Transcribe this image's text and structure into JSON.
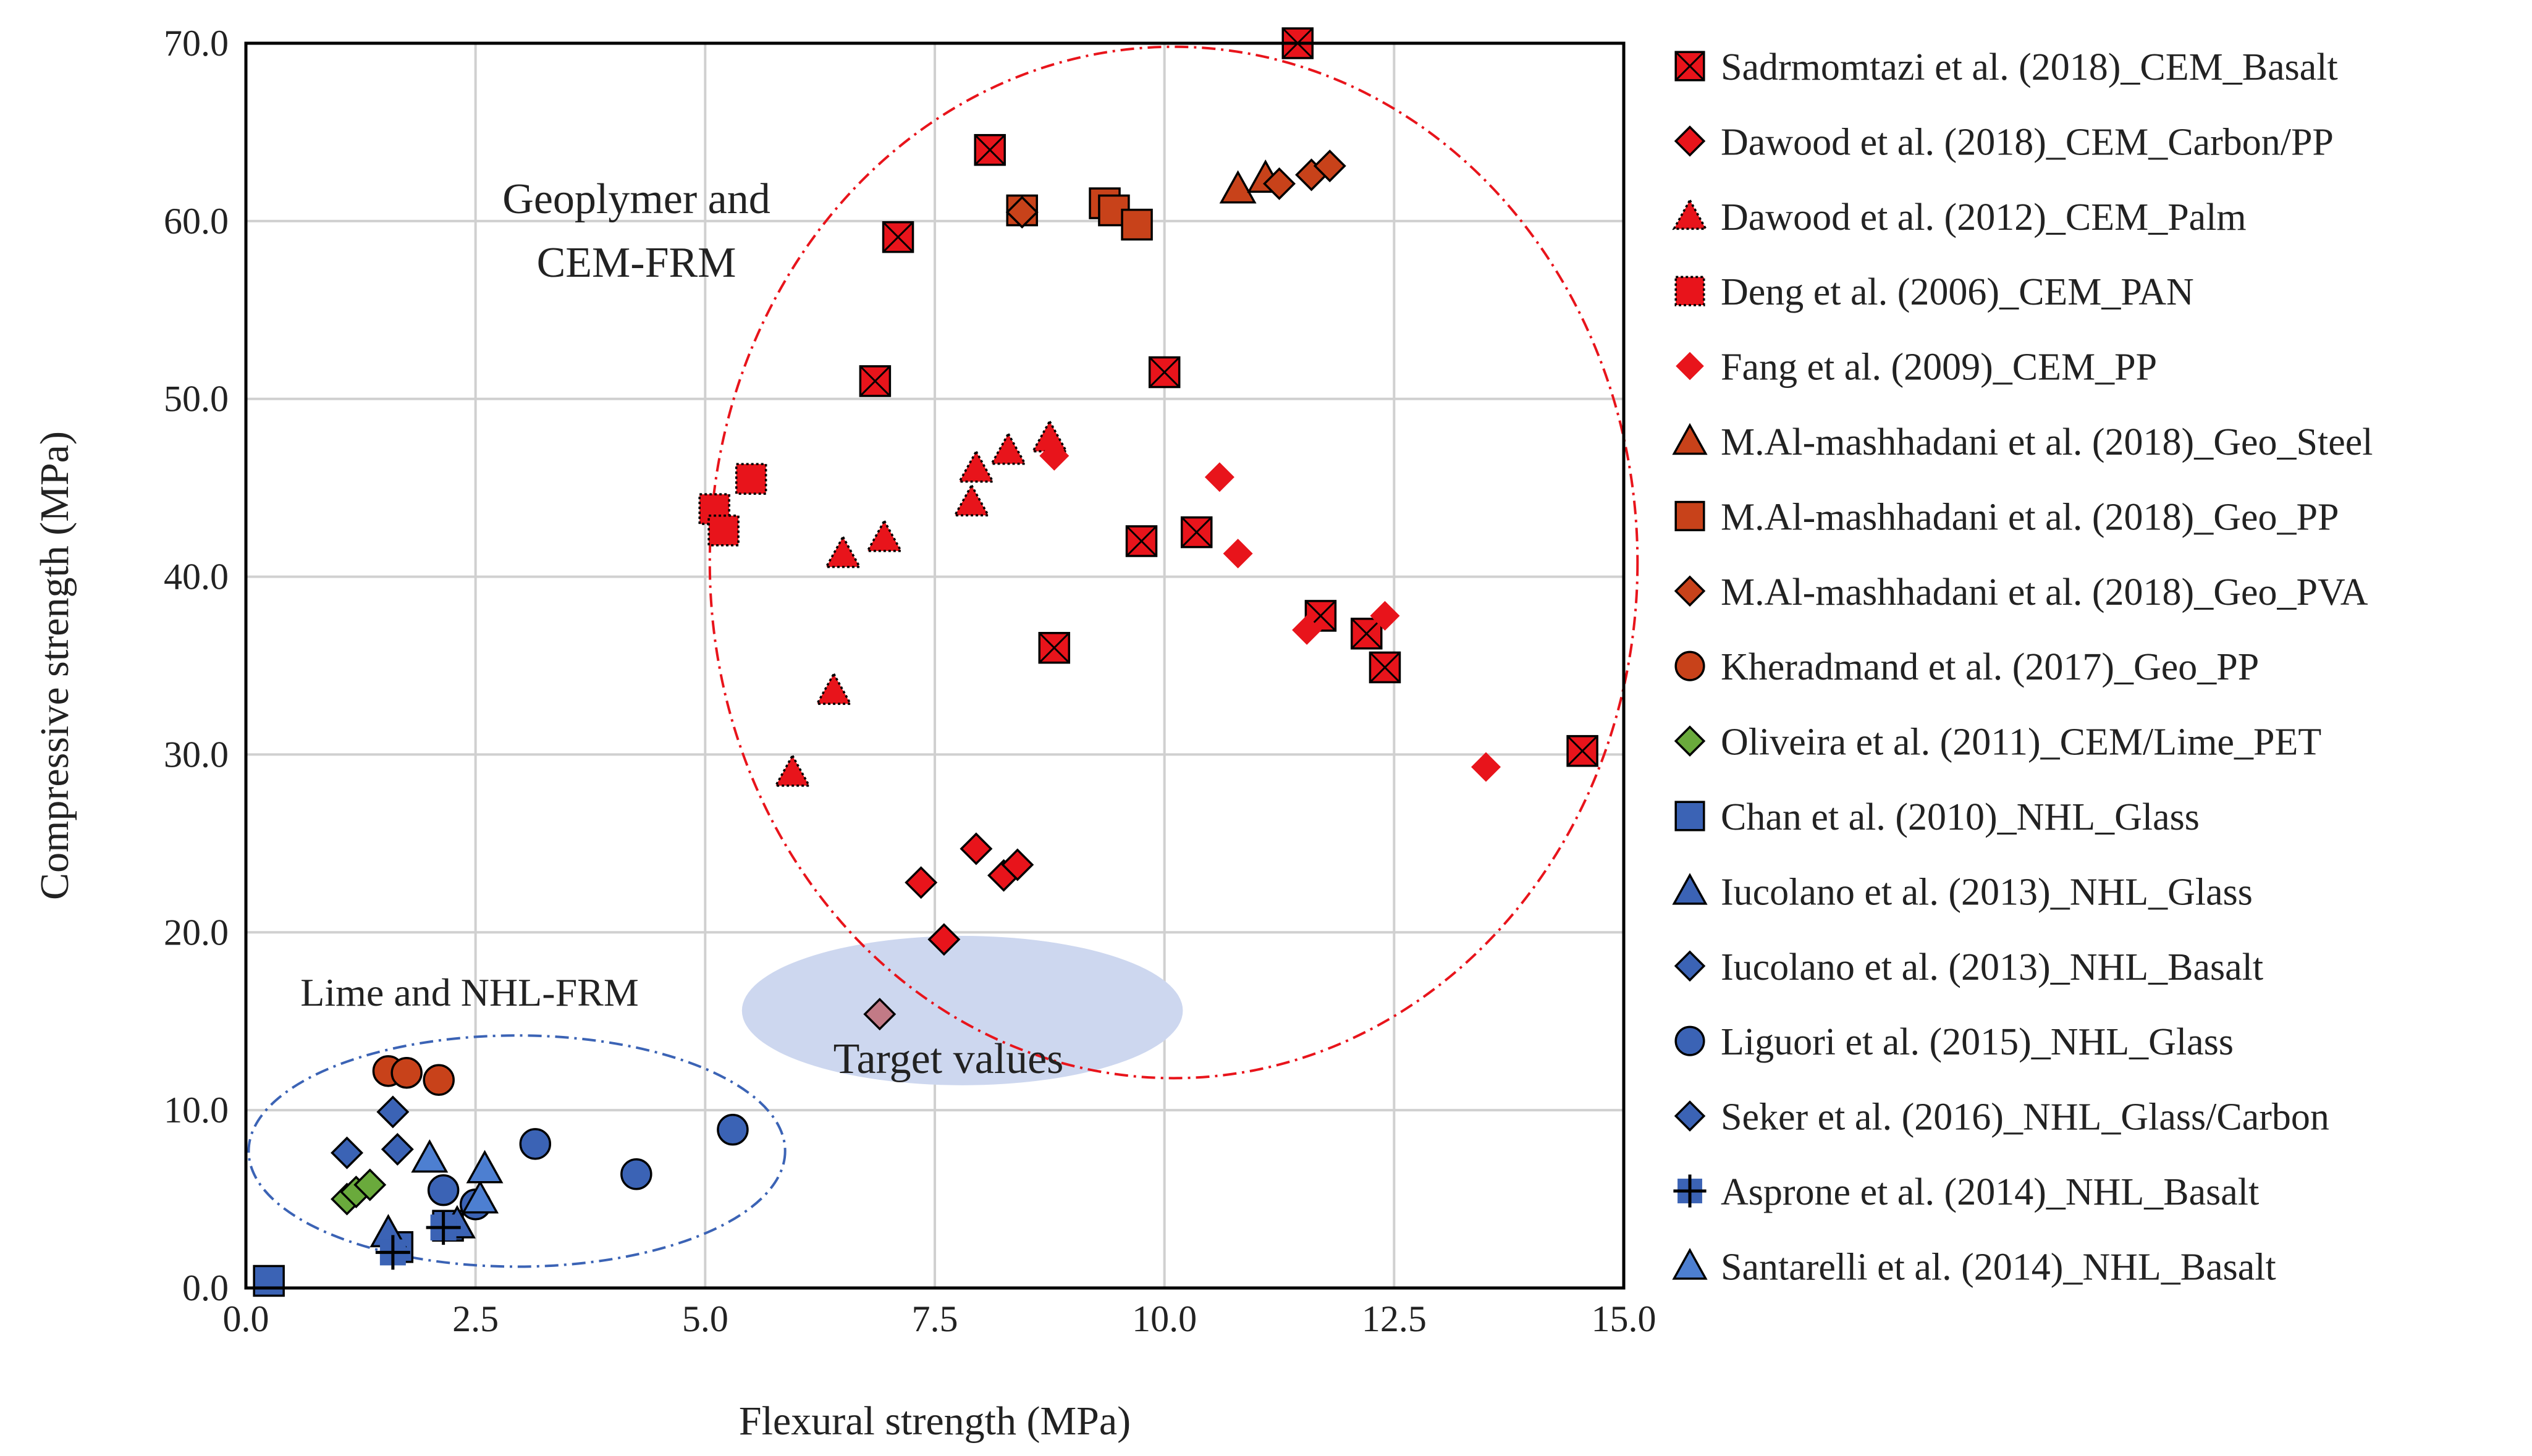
{
  "chart_data": {
    "type": "scatter",
    "title": "",
    "xlabel": "Flexural strength (MPa)",
    "ylabel": "Compressive strength  (MPa)",
    "xlim": [
      0,
      15
    ],
    "ylim": [
      0,
      70
    ],
    "x_ticks": [
      "0.0",
      "2.5",
      "5.0",
      "7.5",
      "10.0",
      "12.5",
      "15.0"
    ],
    "y_ticks": [
      "0.0",
      "10.0",
      "20.0",
      "30.0",
      "40.0",
      "50.0",
      "60.0",
      "70.0"
    ],
    "grid": true,
    "legend_position": "right",
    "colors": {
      "red": "#e8141b",
      "orange": "#c8421a",
      "green": "#6aaa3c",
      "blue": "#3b63b5",
      "lightblue": "#4d7fd1",
      "target": "#c27a86",
      "red_ellipse": "#e8141b",
      "blue_ellipse": "#3b63b5",
      "target_fill": "#cdd7ef"
    },
    "annotations": {
      "geo_line1": "Geoplymer and",
      "geo_line2": "CEM-FRM",
      "lime": "Lime and NHL-FRM",
      "target": "Target values"
    },
    "regions": [
      {
        "name": "geopolymer-cem-region",
        "cx": 10.1,
        "cy": 40.8,
        "rx": 5.05,
        "ry": 29.0
      },
      {
        "name": "lime-nhl-region",
        "cx": 2.95,
        "cy": 7.7,
        "rx": 2.92,
        "ry": 6.5
      },
      {
        "name": "target-region",
        "cx": 7.8,
        "cy": 15.6,
        "rx": 2.4,
        "ry": 4.2
      }
    ],
    "target_point": {
      "x": 6.9,
      "y": 15.4
    },
    "series": [
      {
        "name": "Sadrmomtazi et al. (2018)_CEM_Basalt",
        "marker": "square-x",
        "color": "#e8141b",
        "points": [
          [
            11.45,
            70.0
          ],
          [
            8.1,
            64.0
          ],
          [
            7.1,
            59.1
          ],
          [
            6.85,
            51.0
          ],
          [
            10.0,
            51.5
          ],
          [
            9.75,
            42.0
          ],
          [
            10.35,
            42.5
          ],
          [
            8.8,
            36.0
          ],
          [
            11.7,
            37.8
          ],
          [
            12.2,
            36.8
          ],
          [
            12.4,
            34.9
          ],
          [
            14.55,
            30.2
          ]
        ]
      },
      {
        "name": "Dawood et al. (2018)_CEM_Carbon/PP",
        "marker": "diamond",
        "color": "#e8141b",
        "points": [
          [
            7.35,
            22.8
          ],
          [
            7.95,
            24.7
          ],
          [
            8.25,
            23.2
          ],
          [
            8.4,
            23.8
          ],
          [
            7.6,
            19.6
          ]
        ]
      },
      {
        "name": "Dawood et al. (2012)_CEM_Palm",
        "marker": "triangle-dotted",
        "color": "#e8141b",
        "points": [
          [
            5.95,
            29.0
          ],
          [
            6.4,
            33.6
          ],
          [
            6.5,
            41.3
          ],
          [
            6.95,
            42.2
          ],
          [
            7.9,
            44.2
          ],
          [
            7.95,
            46.1
          ],
          [
            8.3,
            47.1
          ],
          [
            8.75,
            47.8
          ]
        ]
      },
      {
        "name": "Deng et al. (2006)_CEM_PAN",
        "marker": "square-dotted",
        "color": "#e8141b",
        "points": [
          [
            5.1,
            43.8
          ],
          [
            5.2,
            42.6
          ],
          [
            5.5,
            45.5
          ]
        ]
      },
      {
        "name": "Fang et al. (2009)_CEM_PP",
        "marker": "diamond-plain",
        "color": "#e8141b",
        "points": [
          [
            8.8,
            46.8
          ],
          [
            10.6,
            45.6
          ],
          [
            10.8,
            41.3
          ],
          [
            11.55,
            37.0
          ],
          [
            12.4,
            37.8
          ],
          [
            13.5,
            29.3
          ]
        ]
      },
      {
        "name": "M.Al-mashhadani et al. (2018)_Geo_Steel",
        "marker": "triangle",
        "color": "#c8421a",
        "points": [
          [
            10.8,
            61.8
          ],
          [
            11.1,
            62.4
          ]
        ]
      },
      {
        "name": "M.Al-mashhadani et al. (2018)_Geo_PP",
        "marker": "square",
        "color": "#c8421a",
        "points": [
          [
            8.45,
            60.6
          ],
          [
            9.35,
            61.0
          ],
          [
            9.45,
            60.6
          ],
          [
            9.7,
            59.8
          ]
        ]
      },
      {
        "name": "M.Al-mashhadani et al. (2018)_Geo_PVA",
        "marker": "diamond",
        "color": "#c8421a",
        "points": [
          [
            8.45,
            60.5
          ],
          [
            11.25,
            62.1
          ],
          [
            11.6,
            62.6
          ],
          [
            11.8,
            63.1
          ]
        ]
      },
      {
        "name": "Kheradmand et al. (2017)_Geo_PP",
        "marker": "circle",
        "color": "#c8421a",
        "points": [
          [
            1.55,
            12.2
          ],
          [
            1.75,
            12.1
          ],
          [
            2.1,
            11.7
          ]
        ]
      },
      {
        "name": "Oliveira et al. (2011)_CEM/Lime_PET",
        "marker": "diamond",
        "color": "#6aaa3c",
        "points": [
          [
            1.1,
            5.0
          ],
          [
            1.2,
            5.4
          ],
          [
            1.35,
            5.8
          ]
        ]
      },
      {
        "name": "Chan et al. (2010)_NHL_Glass",
        "marker": "square",
        "color": "#3b63b5",
        "points": [
          [
            0.25,
            0.4
          ],
          [
            1.65,
            2.3
          ],
          [
            2.2,
            3.5
          ]
        ]
      },
      {
        "name": "Iucolano et al. (2013)_NHL_Glass",
        "marker": "triangle",
        "color": "#3b63b5",
        "points": [
          [
            1.55,
            3.1
          ],
          [
            2.3,
            3.6
          ]
        ]
      },
      {
        "name": "Iucolano et al. (2013)_NHL_Basalt",
        "marker": "diamond",
        "color": "#3b63b5",
        "points": [
          [
            1.1,
            7.6
          ],
          [
            1.6,
            9.9
          ],
          [
            1.65,
            7.8
          ]
        ]
      },
      {
        "name": "Liguori et al. (2015)_NHL_Glass",
        "marker": "circle",
        "color": "#3b63b5",
        "points": [
          [
            2.15,
            5.5
          ],
          [
            2.5,
            4.7
          ],
          [
            3.15,
            8.1
          ],
          [
            4.25,
            6.4
          ],
          [
            5.3,
            8.9
          ]
        ]
      },
      {
        "name": "Seker et al. (2016)_NHL_Glass/Carbon",
        "marker": "diamond",
        "color": "#3b63b5",
        "points": []
      },
      {
        "name": "Asprone et al. (2014)_NHL_Basalt",
        "marker": "plus",
        "color": "#3b63b5",
        "points": [
          [
            1.6,
            2.0
          ],
          [
            2.15,
            3.4
          ]
        ]
      },
      {
        "name": "Santarelli et al. (2014)_NHL_Basalt",
        "marker": "triangle",
        "color": "#4d7fd1",
        "points": [
          [
            2.0,
            7.3
          ],
          [
            2.55,
            5.0
          ],
          [
            2.6,
            6.7
          ]
        ]
      }
    ]
  }
}
